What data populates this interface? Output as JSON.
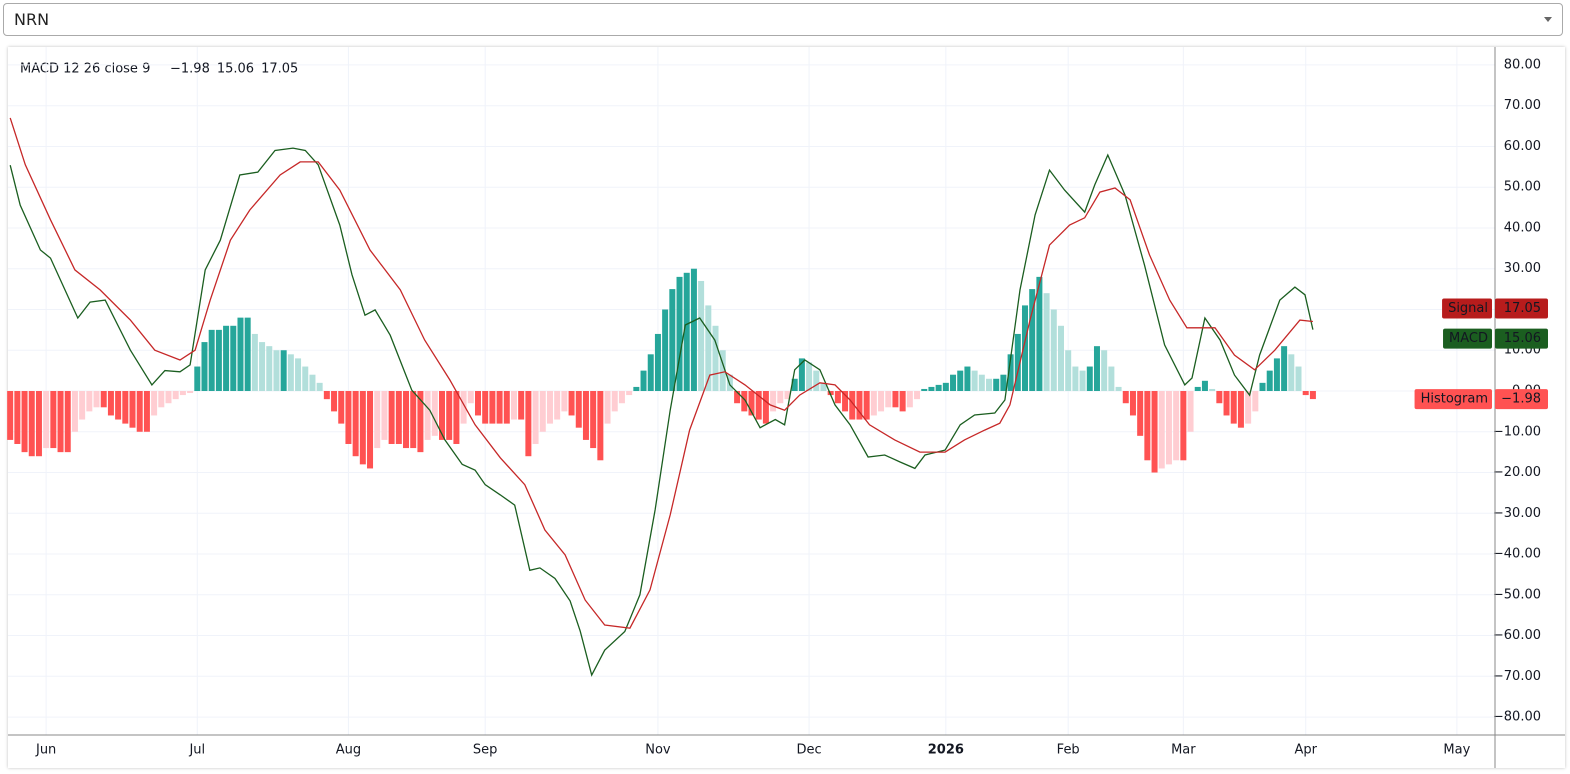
{
  "dropdown": {
    "value": "NRN"
  },
  "chart_data": {
    "type": "macd",
    "legend_title": "MACD 12 26 close 9",
    "xlim": [
      -0.3,
      206.3
    ],
    "xticks": [
      {
        "value": 5,
        "label": "Jun"
      },
      {
        "value": 26,
        "label": "Jul"
      },
      {
        "value": 47,
        "label": "Aug"
      },
      {
        "value": 66,
        "label": "Sep"
      },
      {
        "value": 90,
        "label": "Nov"
      },
      {
        "value": 111,
        "label": "Dec"
      },
      {
        "value": 130,
        "label": "2026"
      },
      {
        "value": 147,
        "label": "Feb"
      },
      {
        "value": 163,
        "label": "Mar"
      },
      {
        "value": 180,
        "label": "Apr"
      },
      {
        "value": 201,
        "label": "May"
      }
    ],
    "ylim": [
      -84.4,
      84.4
    ],
    "yticks": [
      {
        "value": 80,
        "label": "80.00"
      },
      {
        "value": 70,
        "label": "70.00"
      },
      {
        "value": 60,
        "label": "60.00"
      },
      {
        "value": 50,
        "label": "50.00"
      },
      {
        "value": 40,
        "label": "40.00"
      },
      {
        "value": 30,
        "label": "30.00"
      },
      {
        "value": 20,
        "label": "20.00"
      },
      {
        "value": 10,
        "label": "10.00"
      },
      {
        "value": 0,
        "label": "0.00"
      },
      {
        "value": -10,
        "label": "−10.00"
      },
      {
        "value": -20,
        "label": "−20.00"
      },
      {
        "value": -30,
        "label": "−30.00"
      },
      {
        "value": -40,
        "label": "−40.00"
      },
      {
        "value": -50,
        "label": "−50.00"
      },
      {
        "value": -60,
        "label": "−60.00"
      },
      {
        "value": -70,
        "label": "−70.00"
      },
      {
        "value": -80,
        "label": "−80.00"
      }
    ],
    "grid": true,
    "series": [
      {
        "name": "Histogram",
        "kind": "histogram",
        "color": "#ff5252",
        "last_value": -1.98,
        "last_value_label": "−1.98",
        "colors": {
          "rise_up": "#26a69a",
          "fall_up": "#b2dfdb",
          "fall_down": "#ff5252",
          "rise_down": "#ffcdd2"
        },
        "x": [
          0,
          1,
          2,
          3,
          4,
          5,
          6,
          7,
          8,
          9,
          10,
          11,
          12,
          13,
          14,
          15,
          16,
          17,
          18,
          19,
          20,
          21,
          22,
          23,
          24,
          25,
          26,
          27,
          28,
          29,
          30,
          31,
          32,
          33,
          34,
          35,
          36,
          37,
          38,
          39,
          40,
          41,
          42,
          43,
          44,
          45,
          46,
          47,
          48,
          49,
          50,
          51,
          52,
          53,
          54,
          55,
          56,
          57,
          58,
          59,
          60,
          61,
          62,
          63,
          64,
          65,
          66,
          67,
          68,
          69,
          70,
          71,
          72,
          73,
          74,
          75,
          76,
          77,
          78,
          79,
          80,
          81,
          82,
          83,
          84,
          85,
          86,
          87,
          88,
          89,
          90,
          91,
          92,
          93,
          94,
          95,
          96,
          97,
          98,
          99,
          100,
          101,
          102,
          103,
          104,
          105,
          106,
          107,
          108,
          109,
          110,
          111,
          112,
          113,
          114,
          115,
          116,
          117,
          118,
          119,
          120,
          121,
          122,
          123,
          124,
          125,
          126,
          127,
          128,
          129,
          130,
          131,
          132,
          133,
          134,
          135,
          136,
          137,
          138,
          139,
          140,
          141,
          142,
          143,
          144,
          145,
          146,
          147,
          148,
          149,
          150,
          151,
          152,
          153,
          154,
          155,
          156,
          157,
          158,
          159,
          160,
          161,
          162,
          163,
          164,
          165,
          166,
          167,
          168,
          169,
          170,
          171,
          172,
          173,
          174,
          175,
          176,
          177,
          178,
          179,
          180,
          181
        ],
        "values": [
          -12,
          -13,
          -15,
          -16,
          -16,
          -14,
          -14,
          -15,
          -15,
          -10,
          -7,
          -5,
          -4,
          -4,
          -6,
          -7,
          -8,
          -9,
          -10,
          -10,
          -6,
          -4,
          -3,
          -2,
          -1,
          -0.5,
          6,
          12,
          15,
          15,
          16,
          16,
          18,
          18,
          14,
          12,
          11,
          10,
          10,
          9,
          8,
          6,
          4,
          2,
          -2,
          -5,
          -8,
          -13,
          -16,
          -18,
          -19,
          -14,
          -12,
          -13,
          -13,
          -14,
          -14,
          -15,
          -12,
          -11,
          -12,
          -12,
          -13,
          -8,
          -3,
          -6,
          -8,
          -8,
          -8,
          -8,
          -7,
          -7,
          -16,
          -13,
          -10,
          -8,
          -7,
          -5,
          -6,
          -9,
          -12,
          -14,
          -17,
          -8,
          -5,
          -3,
          -1,
          1,
          5,
          9,
          14,
          20,
          25,
          28,
          29,
          30,
          27,
          21,
          16,
          10,
          4,
          -3,
          -5,
          -6,
          -7,
          -8,
          -5,
          -3,
          -2,
          3,
          8,
          7,
          5,
          2,
          -1,
          -3,
          -5,
          -7,
          -7,
          -7,
          -6,
          -5,
          -4,
          -4,
          -5,
          -4,
          -2,
          0.5,
          1,
          1.5,
          2,
          4,
          5,
          6,
          5,
          4,
          3,
          3,
          4,
          9,
          14,
          21,
          25,
          28,
          24,
          20,
          16,
          10,
          6,
          5,
          6,
          11,
          10,
          6,
          1,
          -3,
          -6,
          -11,
          -17,
          -20,
          -19,
          -18,
          -17,
          -17,
          -10,
          1,
          2.5,
          0.5,
          -3,
          -6,
          -8,
          -9,
          -8,
          -5,
          2,
          5,
          8,
          11,
          9,
          6,
          -1,
          -1.98
        ]
      },
      {
        "name": "MACD",
        "kind": "line",
        "color": "#1b5e20",
        "last_value": 15.06,
        "last_value_label": "15.06",
        "x": [
          0,
          1.4,
          4.2,
          5.6,
          9.4,
          11.1,
          13.2,
          16.7,
          19.7,
          21.5,
          23.6,
          25,
          27.1,
          29.2,
          31.9,
          34.4,
          36.8,
          39.3,
          41,
          42.8,
          45.8,
          47.5,
          49.3,
          50.7,
          52.8,
          55.8,
          58.3,
          60.4,
          62.8,
          64.6,
          66,
          68.1,
          70.1,
          72.2,
          73.6,
          75.7,
          77.8,
          79.2,
          80.8,
          82.6,
          85.4,
          87.5,
          89.6,
          91.7,
          93.8,
          95.8,
          97.9,
          100,
          102.1,
          104.2,
          106.3,
          107.6,
          109,
          110.4,
          112.5,
          114.6,
          116.7,
          119.2,
          121.5,
          123.6,
          125.7,
          127.1,
          129.9,
          132,
          134,
          136.8,
          138.2,
          140.3,
          142.4,
          144.4,
          146.5,
          149.3,
          150.7,
          152.5,
          154.9,
          157.6,
          160.4,
          163.2,
          164.2,
          166,
          168.1,
          170.1,
          172.2,
          173.6,
          176.4,
          178.5,
          179.9,
          181
        ],
        "values": [
          55.4,
          45.6,
          34.6,
          32.6,
          17.9,
          21.8,
          22.3,
          10,
          1.5,
          5,
          4.7,
          6.4,
          29.7,
          37,
          53,
          53.7,
          59,
          59.6,
          59,
          55.5,
          40.7,
          28.5,
          18.6,
          19.9,
          13.7,
          0.2,
          -4.7,
          -12,
          -18,
          -19.4,
          -23,
          -25.5,
          -28,
          -44,
          -43.4,
          -46,
          -51.5,
          -58.9,
          -69.7,
          -63.6,
          -59,
          -50,
          -29.2,
          -4.7,
          16.2,
          17.9,
          12.5,
          1.5,
          -2.2,
          -9,
          -7,
          -8.3,
          5.2,
          7.6,
          5.2,
          -3.4,
          -8.3,
          -16.2,
          -15.7,
          -17.4,
          -19,
          -15.7,
          -14.5,
          -8.3,
          -5.9,
          -5.4,
          -2.2,
          24.8,
          43.2,
          54.2,
          49.3,
          43.9,
          50.6,
          57.9,
          48.1,
          30.9,
          11.3,
          1.5,
          3.2,
          17.9,
          12.5,
          3.9,
          -1,
          8.8,
          22.3,
          25.5,
          23.6,
          15.06
        ]
      },
      {
        "name": "Signal",
        "kind": "line",
        "color": "#c62828",
        "last_value": 17.05,
        "last_value_label": "17.05",
        "x": [
          0,
          2.1,
          5.6,
          9,
          12.5,
          16.7,
          20.1,
          23.6,
          25.7,
          27.8,
          30.6,
          33.3,
          37.5,
          40.3,
          42.8,
          45.8,
          50,
          54.2,
          57.6,
          61.1,
          64.6,
          68.1,
          71.5,
          74.3,
          77.1,
          79.9,
          82.6,
          86.1,
          88.9,
          91.7,
          94.4,
          97.2,
          99.3,
          102.1,
          105.6,
          107.6,
          109.7,
          112.5,
          114.6,
          116.7,
          119.4,
          122.9,
          126.4,
          129.9,
          132.6,
          135.4,
          137.5,
          138.9,
          141.7,
          144.4,
          147.2,
          149.3,
          151.4,
          153.5,
          155.6,
          158.3,
          161.1,
          163.5,
          165.3,
          167.4,
          170.1,
          172.9,
          175.7,
          179.2,
          181
        ],
        "values": [
          67,
          55.5,
          42,
          29.7,
          24.8,
          17.4,
          10,
          7.6,
          10,
          22.3,
          37,
          44.4,
          53,
          56.2,
          56.2,
          49.3,
          34.6,
          24.8,
          12.5,
          2.7,
          -8.3,
          -16.4,
          -23,
          -34.1,
          -40.2,
          -51.3,
          -57.4,
          -58.2,
          -48.8,
          -30.4,
          -9.6,
          3.9,
          4.7,
          1.5,
          -3.4,
          -4.7,
          -1,
          2,
          1.5,
          -2.2,
          -8.3,
          -12,
          -15,
          -15,
          -12,
          -9.6,
          -7.9,
          -3.4,
          17.4,
          35.8,
          40.7,
          42.5,
          48.8,
          49.8,
          46.9,
          33.4,
          22.3,
          15.5,
          15.5,
          15.5,
          8.8,
          5.2,
          10,
          17.4,
          17.05
        ]
      }
    ]
  }
}
